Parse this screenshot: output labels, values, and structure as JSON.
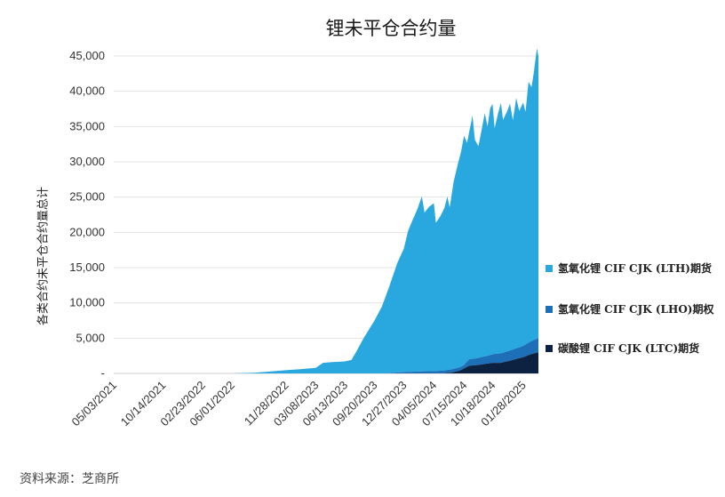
{
  "chart_data": {
    "type": "area",
    "stacked": true,
    "title": "锂未平仓合约量",
    "ylabel": "各类合约未平仓合约量总计",
    "xlabel": "",
    "ylim": [
      0,
      45000
    ],
    "yticks": [
      0,
      5000,
      10000,
      15000,
      20000,
      25000,
      30000,
      35000,
      40000,
      45000
    ],
    "ytick_labels": [
      "-",
      "5,000",
      "10,000",
      "15,000",
      "20,000",
      "25,000",
      "30,000",
      "35,000",
      "40,000",
      "45,000"
    ],
    "xlim": [
      "2021-05-03",
      "2025-03-20"
    ],
    "xticks": [
      "2021-05-03",
      "2021-10-14",
      "2022-02-23",
      "2022-06-01",
      "2022-11-28",
      "2023-03-08",
      "2023-06-13",
      "2023-09-20",
      "2023-12-27",
      "2024-04-05",
      "2024-07-15",
      "2024-10-18",
      "2025-01-28"
    ],
    "xtick_labels": [
      "05/03/2021",
      "10/14/2021",
      "02/23/2022",
      "06/01/2022",
      "11/28/2022",
      "03/08/2023",
      "06/13/2023",
      "09/20/2023",
      "12/27/2023",
      "04/05/2024",
      "07/15/2024",
      "10/18/2024",
      "01/28/2025"
    ],
    "grid": "horizontal",
    "legend_position": "right",
    "series": [
      {
        "name": "氢氧化锂 CIF CJK (LTH)期货",
        "color": "#29a8e0",
        "points": [
          [
            "2021-05-03",
            0
          ],
          [
            "2022-06-01",
            0
          ],
          [
            "2022-08-15",
            100
          ],
          [
            "2022-10-01",
            250
          ],
          [
            "2022-11-28",
            450
          ],
          [
            "2023-01-15",
            600
          ],
          [
            "2023-03-08",
            800
          ],
          [
            "2023-04-01",
            1500
          ],
          [
            "2023-05-01",
            1600
          ],
          [
            "2023-06-13",
            1700
          ],
          [
            "2023-07-05",
            1900
          ],
          [
            "2023-07-20",
            3000
          ],
          [
            "2023-08-15",
            5000
          ],
          [
            "2023-09-20",
            7500
          ],
          [
            "2023-10-15",
            9500
          ],
          [
            "2023-11-10",
            12500
          ],
          [
            "2023-12-05",
            15500
          ],
          [
            "2023-12-27",
            17500
          ],
          [
            "2024-01-10",
            20000
          ],
          [
            "2024-01-25",
            21500
          ],
          [
            "2024-02-10",
            23000
          ],
          [
            "2024-02-25",
            24800
          ],
          [
            "2024-03-05",
            22500
          ],
          [
            "2024-03-20",
            23300
          ],
          [
            "2024-04-05",
            23800
          ],
          [
            "2024-04-12",
            21000
          ],
          [
            "2024-04-28",
            22000
          ],
          [
            "2024-05-10",
            23000
          ],
          [
            "2024-05-20",
            24600
          ],
          [
            "2024-05-28",
            23000
          ],
          [
            "2024-06-10",
            26500
          ],
          [
            "2024-06-25",
            29000
          ],
          [
            "2024-07-05",
            30500
          ],
          [
            "2024-07-15",
            32500
          ],
          [
            "2024-07-25",
            31000
          ],
          [
            "2024-08-05",
            33000
          ],
          [
            "2024-08-12",
            34500
          ],
          [
            "2024-08-20",
            31000
          ],
          [
            "2024-09-01",
            30000
          ],
          [
            "2024-09-15",
            33000
          ],
          [
            "2024-09-22",
            34500
          ],
          [
            "2024-10-01",
            32500
          ],
          [
            "2024-10-10",
            35000
          ],
          [
            "2024-10-18",
            35500
          ],
          [
            "2024-10-25",
            32000
          ],
          [
            "2024-11-05",
            34000
          ],
          [
            "2024-11-15",
            35500
          ],
          [
            "2024-11-22",
            33000
          ],
          [
            "2024-12-05",
            34000
          ],
          [
            "2024-12-15",
            35000
          ],
          [
            "2024-12-25",
            32500
          ],
          [
            "2025-01-05",
            35500
          ],
          [
            "2025-01-15",
            33500
          ],
          [
            "2025-01-28",
            34500
          ],
          [
            "2025-02-05",
            33000
          ],
          [
            "2025-02-15",
            37000
          ],
          [
            "2025-02-25",
            36000
          ],
          [
            "2025-03-05",
            38000
          ],
          [
            "2025-03-15",
            41200
          ],
          [
            "2025-03-20",
            40000
          ]
        ]
      },
      {
        "name": "氢氧化锂 CIF CJK (LHO)期权",
        "color": "#1d6fb8",
        "points": [
          [
            "2021-05-03",
            0
          ],
          [
            "2023-11-01",
            0
          ],
          [
            "2023-12-10",
            150
          ],
          [
            "2024-02-01",
            250
          ],
          [
            "2024-03-01",
            300
          ],
          [
            "2024-04-15",
            350
          ],
          [
            "2024-06-01",
            450
          ],
          [
            "2024-07-15",
            500
          ],
          [
            "2024-08-01",
            900
          ],
          [
            "2024-09-01",
            1000
          ],
          [
            "2024-10-01",
            1100
          ],
          [
            "2024-11-01",
            1300
          ],
          [
            "2024-12-01",
            1400
          ],
          [
            "2025-01-01",
            1500
          ],
          [
            "2025-01-28",
            1600
          ],
          [
            "2025-02-20",
            1800
          ],
          [
            "2025-03-20",
            2000
          ]
        ]
      },
      {
        "name": "碳酸锂 CIF CJK (LTC)期货",
        "color": "#0d2240",
        "points": [
          [
            "2021-05-03",
            0
          ],
          [
            "2024-05-01",
            0
          ],
          [
            "2024-06-01",
            100
          ],
          [
            "2024-07-01",
            400
          ],
          [
            "2024-07-15",
            700
          ],
          [
            "2024-08-01",
            1100
          ],
          [
            "2024-09-01",
            1200
          ],
          [
            "2024-10-01",
            1400
          ],
          [
            "2024-10-18",
            1500
          ],
          [
            "2024-11-15",
            1500
          ],
          [
            "2024-12-15",
            1800
          ],
          [
            "2025-01-10",
            2100
          ],
          [
            "2025-01-28",
            2300
          ],
          [
            "2025-02-15",
            2600
          ],
          [
            "2025-03-01",
            2800
          ],
          [
            "2025-03-20",
            3000
          ]
        ]
      }
    ]
  },
  "source": "资料来源：芝商所"
}
